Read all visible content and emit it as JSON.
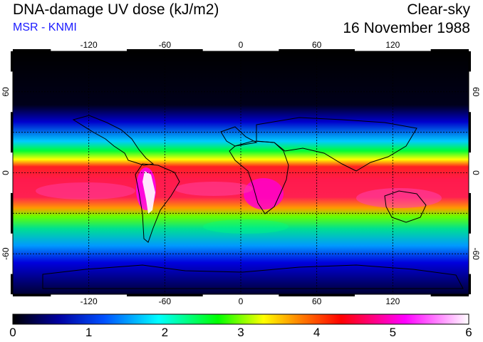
{
  "header": {
    "title": "DNA-damage UV dose (kJ/m2)",
    "subtitle": "MSR - KNMI",
    "sky_condition": "Clear-sky",
    "date": "16 November 1988"
  },
  "map": {
    "projection": "equirectangular",
    "lon_range": [
      -180,
      180
    ],
    "lat_range": [
      -90,
      90
    ],
    "lon_ticks": [
      "-120",
      "-60",
      "0",
      "60",
      "120"
    ],
    "lat_ticks_left": [
      "60",
      "0",
      "-60"
    ],
    "lat_ticks_right": [
      "60",
      "0",
      "-60"
    ],
    "gridlines": {
      "lon": [
        -120,
        -60,
        0,
        60,
        120
      ],
      "lat": [
        -60,
        -30,
        0,
        30,
        60
      ]
    },
    "polar_night_color": "#000000"
  },
  "colorbar": {
    "min": 0,
    "max": 6,
    "tick_labels": [
      "0",
      "1",
      "2",
      "3",
      "4",
      "5",
      "6"
    ],
    "colors": [
      "#000000",
      "#0000cc",
      "#00ffff",
      "#00ff00",
      "#ffff00",
      "#ff0000",
      "#ff00ff",
      "#ffffff"
    ]
  }
}
